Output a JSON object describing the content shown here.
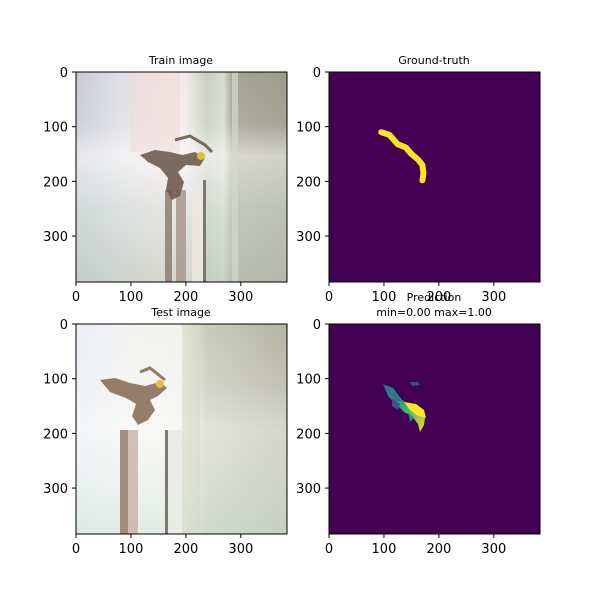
{
  "chart_data": [
    {
      "type": "image",
      "title": "Train image",
      "image_size": [
        384,
        384
      ],
      "xticks": [
        0,
        100,
        200,
        300
      ],
      "yticks": [
        0,
        100,
        200,
        300
      ],
      "content": "RGB photo of a lizard on a white pole"
    },
    {
      "type": "heatmap",
      "title": "Ground-truth",
      "image_size": [
        384,
        384
      ],
      "xticks": [
        0,
        100,
        200,
        300
      ],
      "yticks": [
        0,
        100,
        200,
        300
      ],
      "colormap": "viridis",
      "mask_polyline_xy": [
        [
          95,
          110
        ],
        [
          110,
          115
        ],
        [
          125,
          132
        ],
        [
          140,
          138
        ],
        [
          150,
          150
        ],
        [
          162,
          160
        ],
        [
          170,
          170
        ],
        [
          172,
          185
        ],
        [
          170,
          198
        ]
      ]
    },
    {
      "type": "image",
      "title": "Test image",
      "image_size": [
        384,
        384
      ],
      "xticks": [
        0,
        100,
        200,
        300
      ],
      "yticks": [
        0,
        100,
        200,
        300
      ],
      "content": "RGB photo of a lizard on a white pole"
    },
    {
      "type": "heatmap",
      "title": "Prediction\nmin=0.00 max=1.00",
      "title_lines": [
        "Prediction",
        "min=0.00 max=1.00"
      ],
      "image_size": [
        384,
        384
      ],
      "xticks": [
        0,
        100,
        200,
        300
      ],
      "yticks": [
        0,
        100,
        200,
        300
      ],
      "colormap": "viridis",
      "vmin": 0.0,
      "vmax": 1.0
    }
  ]
}
